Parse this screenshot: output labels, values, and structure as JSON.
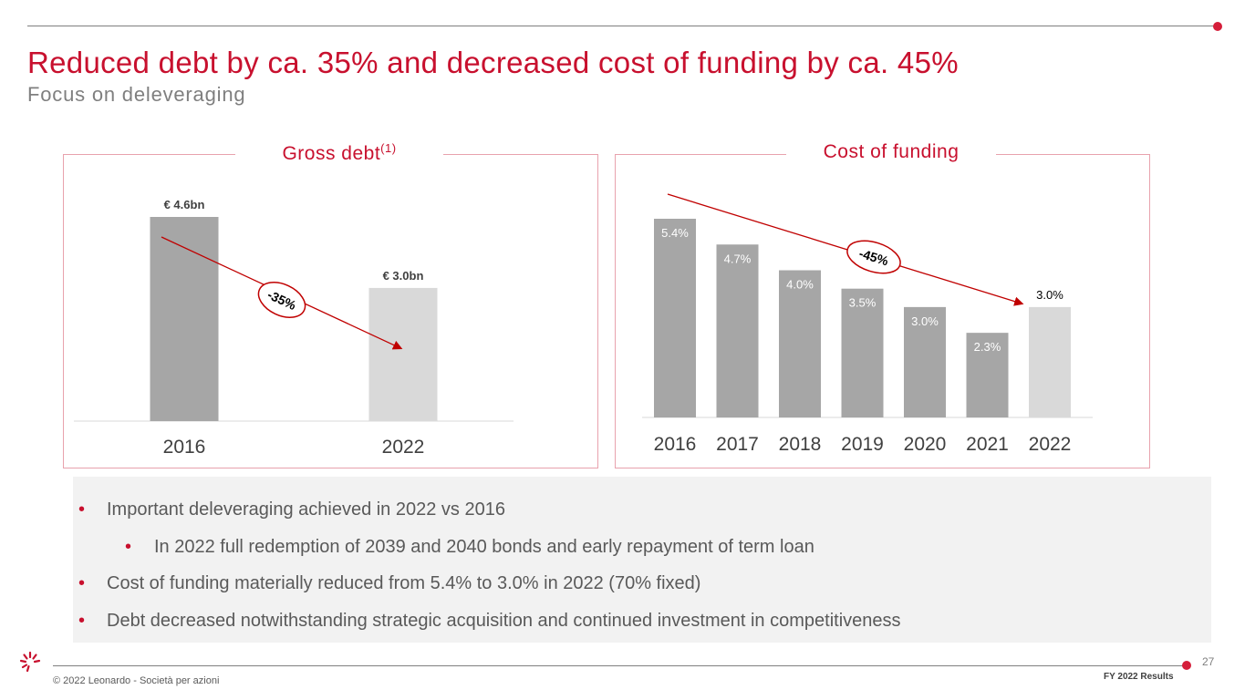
{
  "header": {
    "title": "Reduced debt by ca. 35% and decreased cost of funding by ca. 45%",
    "subtitle": "Focus on deleveraging"
  },
  "colors": {
    "accent": "#c8102e",
    "bar_dark": "#a6a6a6",
    "bar_light": "#d9d9d9",
    "arrow": "#c00000"
  },
  "chart_data": [
    {
      "type": "bar",
      "title": "Gross debt",
      "title_sup": "(1)",
      "categories": [
        "2016",
        "2022"
      ],
      "values": [
        4.6,
        3.0
      ],
      "data_labels": [
        "€ 4.6bn",
        "€ 3.0bn"
      ],
      "unit": "€ bn",
      "ylim": [
        0,
        5.0
      ],
      "annotation": "-35%"
    },
    {
      "type": "bar",
      "title": "Cost of funding",
      "categories": [
        "2016",
        "2017",
        "2018",
        "2019",
        "2020",
        "2021",
        "2022"
      ],
      "values": [
        5.4,
        4.7,
        4.0,
        3.5,
        3.0,
        2.3,
        3.0
      ],
      "data_labels": [
        "5.4%",
        "4.7%",
        "4.0%",
        "3.5%",
        "3.0%",
        "2.3%",
        "3.0%"
      ],
      "unit": "%",
      "ylim": [
        0,
        6.0
      ],
      "annotation": "-45%"
    }
  ],
  "notes": {
    "bullets": [
      "Important deleveraging achieved in 2022 vs 2016",
      "In 2022 full redemption of 2039 and 2040 bonds and early repayment of term loan",
      "Cost of funding materially reduced from 5.4% to 3.0% in 2022 (70% fixed)",
      "Debt decreased notwithstanding strategic acquisition and continued investment in competitiveness"
    ],
    "bullet_char": "•"
  },
  "footer": {
    "page_number": "27",
    "copyright": "© 2022 Leonardo - Società per azioni",
    "tag": "FY 2022 Results"
  }
}
